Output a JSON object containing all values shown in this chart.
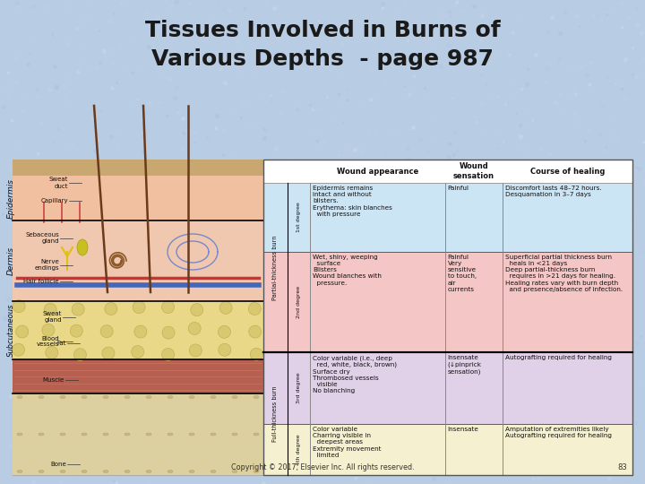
{
  "title_line1": "Tissues Involved in Burns of",
  "title_line2": "Various Depths  - page 987",
  "title_fontsize": 18,
  "title_color": "#1a1a1a",
  "slide_bg": "#b8cce4",
  "copyright_text": "Copyright © 2017, Elsevier Inc. All rights reserved.",
  "copyright_page": "83",
  "row1_color": "#cce5f5",
  "row2_color": "#f5c6c6",
  "row3_color": "#e0d0e8",
  "row4_color": "#f5f0d0",
  "cells": [
    {
      "degree": "1st degree",
      "appearance": "Epidermis remains\nintact and without\nblisters.\nErythema: skin blanches\n  with pressure",
      "sensation": "Painful",
      "healing": "Discomfort lasts 48–72 hours.\nDesquamation in 3–7 days",
      "color": "#cce5f5"
    },
    {
      "degree": "2nd degree",
      "appearance": "Wet, shiny, weeping\n  surface\nBlisters\nWound blanches with\n  pressure.",
      "sensation": "Painful\nVery\nsensitive\nto touch,\nair\ncurrents",
      "healing": "Superficial partial thickness burn\n  heals in <21 days\nDeep partial-thickness burn\n  requires in >21 days for healing.\nHealing rates vary with burn depth\n  and presence/absence of infection.",
      "color": "#f5c6c6"
    },
    {
      "degree": "3rd degree",
      "appearance": "Color variable (i.e., deep\n  red, white, black, brown)\nSurface dry\nThrombosed vessels\n  visible\nNo blanching",
      "sensation": "Insensate\n(↓pinprick\nsensation)",
      "healing": "Autografting required for healing",
      "color": "#e0d0e8"
    },
    {
      "degree": "4th degree",
      "appearance": "Color variable\nCharring visible in\n  deepest areas\nExtremity movement\n  limited",
      "sensation": "Insensate",
      "healing": "Amputation of extremities likely\nAutografting required for healing",
      "color": "#f5f0d0"
    }
  ]
}
